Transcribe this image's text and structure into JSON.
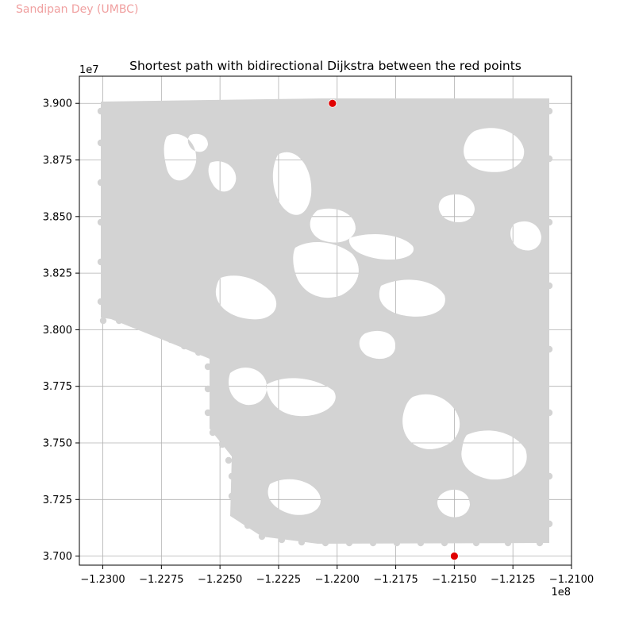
{
  "watermark": "Sandipan Dey (UMBC)",
  "colors": {
    "watermark": "#f0a0a0",
    "nodes": "#d3d3d3",
    "endpoints": "#e00000",
    "endpoint_edge": "#ffffff",
    "grid": "#b0b0b0",
    "axes": "#000000",
    "background": "#ffffff"
  },
  "chart_data": {
    "type": "scatter",
    "title": "Shortest path with bidirectional Dijkstra between the red points",
    "xlabel": "",
    "ylabel": "",
    "xlim": [
      -123.1,
      -121.0
    ],
    "ylim": [
      36.96,
      39.12
    ],
    "x_multiplier_label": "1e8",
    "y_multiplier_label": "1e7",
    "x_ticks": [
      -123.0,
      -122.75,
      -122.5,
      -122.25,
      -122.0,
      -121.75,
      -121.5,
      -121.25,
      -121.0
    ],
    "x_tick_labels": [
      "−1.2300",
      "−1.2275",
      "−1.2250",
      "−1.2225",
      "−1.2200",
      "−1.2175",
      "−1.2150",
      "−1.2125",
      "−1.2100"
    ],
    "y_ticks": [
      37.0,
      37.25,
      37.5,
      37.75,
      38.0,
      38.25,
      38.5,
      38.75,
      39.0
    ],
    "y_tick_labels": [
      "3.700",
      "3.725",
      "3.750",
      "3.775",
      "3.800",
      "3.825",
      "3.850",
      "3.875",
      "3.900"
    ],
    "grid": true,
    "series": [
      {
        "role": "network nodes",
        "color": "#d3d3d3",
        "extent": {
          "x": [
            -123.0,
            -121.03
          ],
          "y": [
            37.0,
            39.0
          ]
        }
      },
      {
        "role": "endpoints",
        "color": "#e00000",
        "points": [
          {
            "x": -122.02,
            "y": 39.0
          },
          {
            "x": -121.5,
            "y": 37.0
          }
        ]
      }
    ]
  }
}
